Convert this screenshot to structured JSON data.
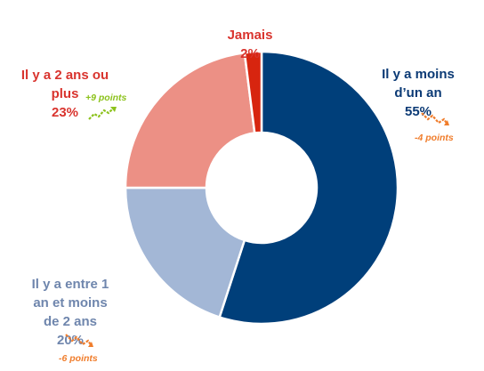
{
  "chart_data": {
    "type": "pie",
    "donut": true,
    "slices": [
      {
        "label": "Il y a moins\nd’un an",
        "value": 55,
        "pct_text": "55%",
        "color": "#003f7a",
        "label_color": "#0b3a75",
        "trend": "-4 points",
        "trend_dir": "down"
      },
      {
        "label": "Il y a entre 1\nan et moins\nde 2 ans",
        "value": 20,
        "pct_text": "20%",
        "color": "#a3b7d6",
        "label_color": "#6f86ad",
        "trend": "-6 points",
        "trend_dir": "down"
      },
      {
        "label": "Il y a 2 ans ou\nplus",
        "value": 23,
        "pct_text": "23%",
        "color": "#ec9085",
        "label_color": "#d9342e",
        "trend": "+9 points",
        "trend_dir": "up"
      },
      {
        "label": "Jamais",
        "value": 2,
        "pct_text": "2%",
        "color": "#d7250f",
        "label_color": "#d9342e",
        "trend": "",
        "trend_dir": ""
      }
    ],
    "trend_colors": {
      "down": "#f07d2c",
      "up": "#8cc21c"
    }
  }
}
